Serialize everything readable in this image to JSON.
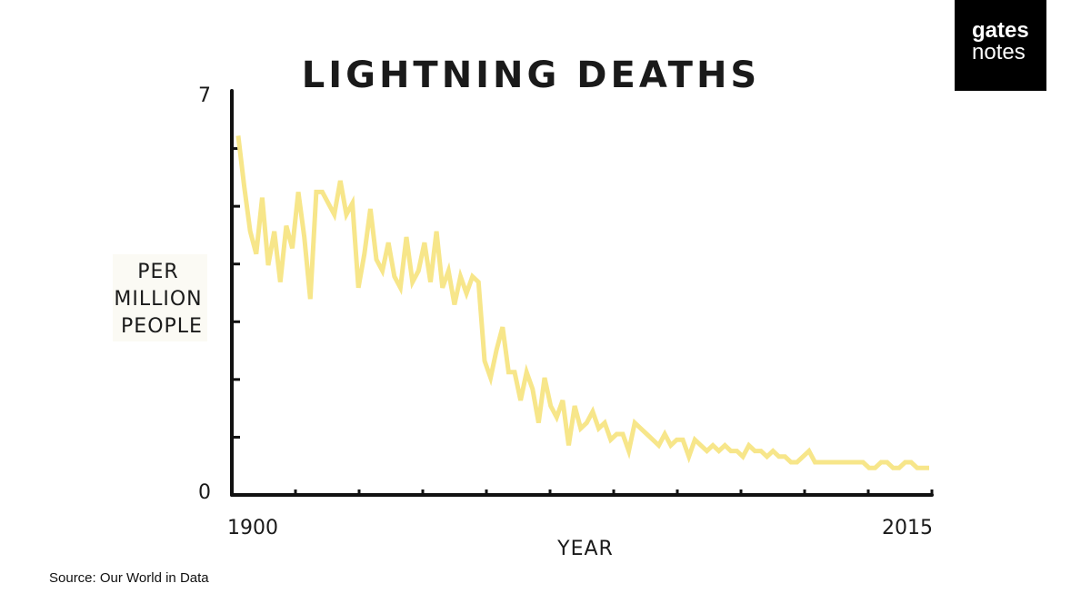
{
  "chart_data": {
    "type": "line",
    "title": "LIGHTNING DEATHS",
    "xlabel": "YEAR",
    "ylabel": "PER MILLION PEOPLE",
    "ylabel_lines": [
      "PER",
      "MILLION",
      "PEOPLE"
    ],
    "xlim": [
      1900,
      2015
    ],
    "ylim": [
      0,
      7
    ],
    "x_tick_labels": [
      "1900",
      "2015"
    ],
    "y_tick_labels": [
      "0",
      "7"
    ],
    "grid": false,
    "line_color": "#f7e68a",
    "series": [
      {
        "x": [
          1900,
          1901,
          1902,
          1903,
          1904,
          1905,
          1906,
          1907,
          1908,
          1909,
          1910,
          1911,
          1912,
          1913,
          1914,
          1915,
          1916,
          1917,
          1918,
          1919,
          1920,
          1921,
          1922,
          1923,
          1924,
          1925,
          1926,
          1927,
          1928,
          1929,
          1930,
          1931,
          1932,
          1933,
          1934,
          1935,
          1936,
          1937,
          1938,
          1939,
          1940,
          1941,
          1942,
          1943,
          1944,
          1945,
          1946,
          1947,
          1948,
          1949,
          1950,
          1951,
          1952,
          1953,
          1954,
          1955,
          1956,
          1957,
          1958,
          1959,
          1960,
          1961,
          1962,
          1963,
          1964,
          1965,
          1966,
          1967,
          1968,
          1969,
          1970,
          1971,
          1972,
          1973,
          1974,
          1975,
          1976,
          1977,
          1978,
          1979,
          1980,
          1981,
          1982,
          1983,
          1984,
          1985,
          1986,
          1987,
          1988,
          1989,
          1990,
          1991,
          1992,
          1993,
          1994,
          1995,
          1996,
          1997,
          1998,
          1999,
          2000,
          2001,
          2002,
          2003,
          2004,
          2005,
          2006,
          2007,
          2008,
          2009,
          2010,
          2011,
          2012,
          2013,
          2014,
          2015
        ],
        "values": [
          6.3,
          5.4,
          4.6,
          4.2,
          5.2,
          4.0,
          4.6,
          3.7,
          4.7,
          4.3,
          5.3,
          4.5,
          3.4,
          5.3,
          5.3,
          5.1,
          4.9,
          5.5,
          4.9,
          5.1,
          3.6,
          4.2,
          5.0,
          4.1,
          3.9,
          4.4,
          3.8,
          3.6,
          4.5,
          3.7,
          3.9,
          4.4,
          3.7,
          4.6,
          3.6,
          3.9,
          3.3,
          3.8,
          3.5,
          3.8,
          3.7,
          2.3,
          2.0,
          2.5,
          2.9,
          2.1,
          2.1,
          1.6,
          2.1,
          1.8,
          1.2,
          2.0,
          1.5,
          1.3,
          1.6,
          0.8,
          1.5,
          1.1,
          1.2,
          1.4,
          1.1,
          1.2,
          0.9,
          1.0,
          1.0,
          0.7,
          1.2,
          1.1,
          1.0,
          0.9,
          0.8,
          1.0,
          0.8,
          0.9,
          0.9,
          0.6,
          0.9,
          0.8,
          0.7,
          0.8,
          0.7,
          0.8,
          0.7,
          0.7,
          0.6,
          0.8,
          0.7,
          0.7,
          0.6,
          0.7,
          0.6,
          0.6,
          0.5,
          0.5,
          0.6,
          0.7,
          0.5,
          0.5,
          0.5,
          0.5,
          0.5,
          0.5,
          0.5,
          0.5,
          0.5,
          0.4,
          0.4,
          0.5,
          0.5,
          0.4,
          0.4,
          0.5,
          0.5,
          0.4,
          0.4,
          0.4
        ]
      }
    ]
  },
  "logo": {
    "word1": "gates",
    "word2": "notes"
  },
  "source": "Source: Our World in Data"
}
